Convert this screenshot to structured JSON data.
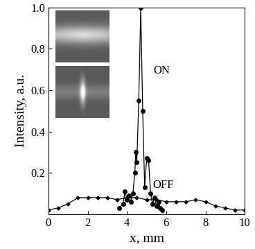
{
  "chart_data": {
    "type": "line",
    "x_label": "x, mm",
    "y_label": "Intensity, a.u.",
    "xlim": [
      0,
      10
    ],
    "ylim": [
      0,
      1.0
    ],
    "xticks": [
      0,
      2,
      4,
      6,
      8,
      10
    ],
    "yticks": [
      0.2,
      0.4,
      0.6,
      0.8,
      {
        "value": 1.0,
        "label": "1.0"
      }
    ],
    "series": [
      {
        "name": "ON",
        "color": "#000000",
        "marker": "circle",
        "line_style": "solid",
        "x": [
          3.6,
          3.8,
          3.9,
          4.0,
          4.1,
          4.2,
          4.3,
          4.4,
          4.45,
          4.5,
          4.6,
          4.7,
          4.8,
          4.9,
          5.0,
          5.1,
          5.2,
          5.3,
          5.4,
          5.5,
          5.6,
          5.7,
          5.8
        ],
        "values": [
          0.03,
          0.05,
          0.11,
          0.07,
          0.09,
          0.06,
          0.1,
          0.2,
          0.3,
          0.25,
          0.55,
          1.0,
          0.5,
          0.13,
          0.27,
          0.26,
          0.1,
          0.05,
          0.08,
          0.04,
          0.06,
          0.03,
          0.02
        ]
      },
      {
        "name": "OFF",
        "color": "#000000",
        "marker": "diamond",
        "line_style": "solid",
        "x": [
          0,
          0.5,
          1,
          1.5,
          2,
          2.5,
          3,
          3.5,
          4,
          4.5,
          5,
          5.5,
          6,
          6.5,
          7,
          7.5,
          8,
          8.5,
          9,
          9.5,
          10
        ],
        "values": [
          0.02,
          0.03,
          0.05,
          0.08,
          0.08,
          0.08,
          0.08,
          0.07,
          0.08,
          0.08,
          0.07,
          0.07,
          0.06,
          0.06,
          0.06,
          0.07,
          0.06,
          0.04,
          0.03,
          0.02,
          0.02
        ]
      }
    ]
  }
}
